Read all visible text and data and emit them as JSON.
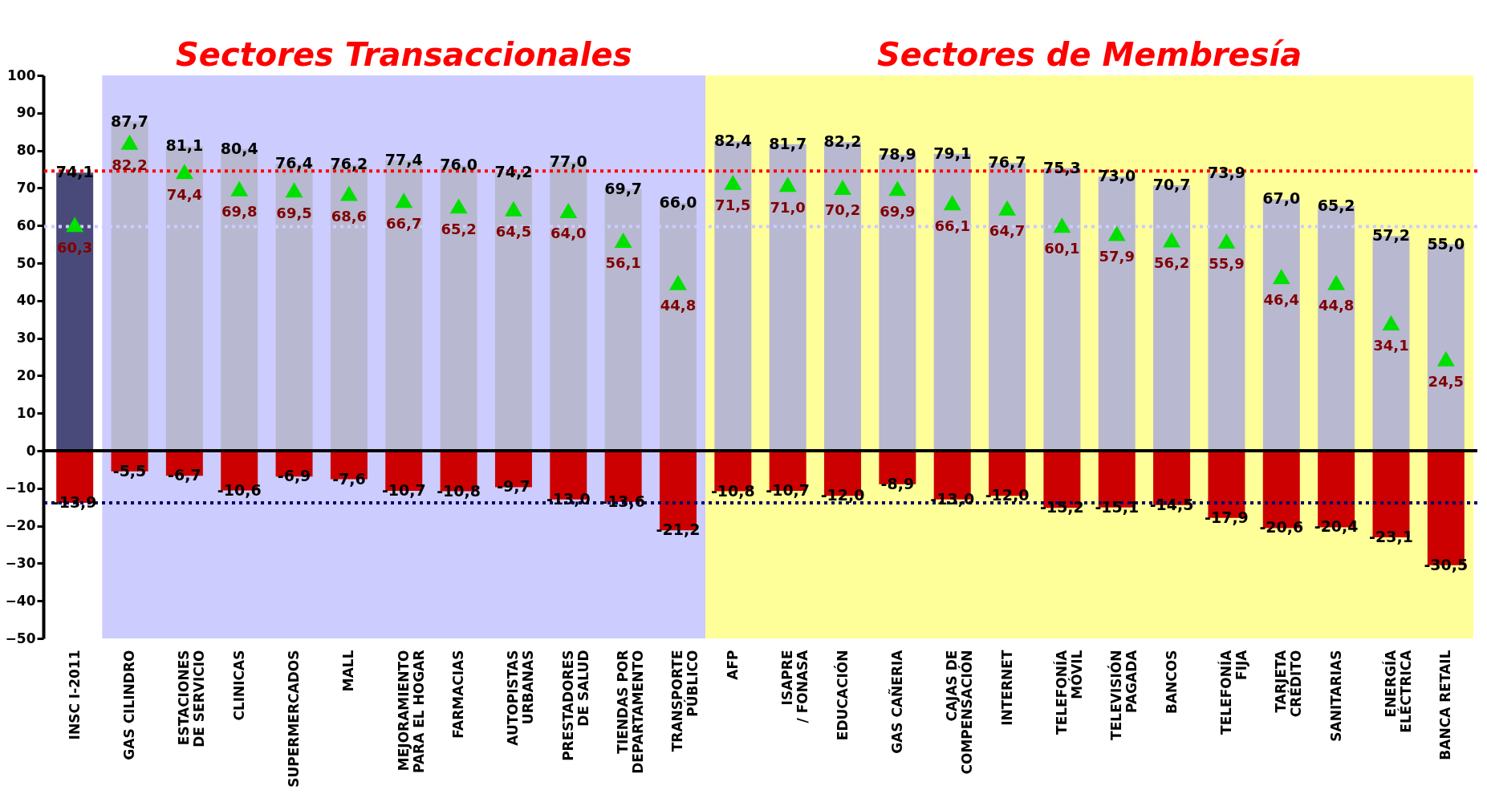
{
  "chart_data": {
    "type": "bar",
    "stacked": true,
    "categories": [
      "INSC I-2011",
      "GAS CILINDRO",
      "ESTACIONES DE SERVICIO",
      "CLINICAS",
      "SUPERMERCADOS",
      "MALL",
      "MEJORAMIENTO PARA EL HOGAR",
      "FARMACIAS",
      "AUTOPISTAS URBANAS",
      "PRESTADORES DE SALUD",
      "TIENDAS POR DEPARTAMENTO",
      "TRANSPORTE PÚBLICO",
      "AFP",
      "ISAPRE / FONASA",
      "EDUCACIÓN",
      "GAS CAÑERIA",
      "CAJAS DE COMPENSACIÓN",
      "INTERNET",
      "TELEFONÍA MÓVIL",
      "TELEVISIÓN PAGADA",
      "BANCOS",
      "TELEFONÍA FIJA",
      "TARJETA CRÉDITO",
      "SANITARIAS",
      "ENERGÍA ELÉCTRICA",
      "BANCA RETAIL"
    ],
    "series": [
      {
        "colors": [
          "#4a4a7a",
          "#b8b8d0",
          "#b8b8d0",
          "#b8b8d0",
          "#b8b8d0",
          "#b8b8d0",
          "#b8b8d0",
          "#b8b8d0",
          "#b8b8d0",
          "#b8b8d0",
          "#b8b8d0",
          "#b8b8d0",
          "#b8b8d0",
          "#b8b8d0",
          "#b8b8d0",
          "#b8b8d0",
          "#b8b8d0",
          "#b8b8d0",
          "#b8b8d0",
          "#b8b8d0",
          "#b8b8d0",
          "#b8b8d0",
          "#b8b8d0",
          "#b8b8d0",
          "#b8b8d0",
          "#b8b8d0"
        ],
        "values": [
          74.1,
          87.7,
          81.1,
          80.4,
          76.4,
          76.2,
          77.4,
          76.0,
          74.2,
          77.0,
          69.7,
          66.0,
          82.4,
          81.7,
          82.2,
          78.9,
          79.1,
          76.7,
          75.3,
          73.0,
          70.7,
          73.9,
          67.0,
          65.2,
          57.2,
          55.0
        ],
        "value_labels": [
          "74,1",
          "87,7",
          "81,1",
          "80,4",
          "76,4",
          "76,2",
          "77,4",
          "76,0",
          "74,2",
          "77,0",
          "69,7",
          "66,0",
          "82,4",
          "81,7",
          "82,2",
          "78,9",
          "79,1",
          "76,7",
          "75,3",
          "73,0",
          "70,7",
          "73,9",
          "67,0",
          "65,2",
          "57,2",
          "55,0"
        ]
      },
      {
        "color": "#cc0000",
        "values": [
          -13.9,
          -5.5,
          -6.7,
          -10.6,
          -6.9,
          -7.6,
          -10.7,
          -10.8,
          -9.7,
          -13.0,
          -13.6,
          -21.2,
          -10.8,
          -10.7,
          -12.0,
          -8.9,
          -13.0,
          -12.0,
          -15.2,
          -15.1,
          -14.5,
          -17.9,
          -20.6,
          -20.4,
          -23.1,
          -30.5
        ],
        "value_labels": [
          "-13,9",
          "-5,5",
          "-6,7",
          "-10,6",
          "-6,9",
          "-7,6",
          "-10,7",
          "-10,8",
          "-9,7",
          "-13,0",
          "-13,6",
          "-21,2",
          "-10,8",
          "-10,7",
          "-12,0",
          "-8,9",
          "-13,0",
          "-12,0",
          "-15,2",
          "-15,1",
          "-14,5",
          "-17,9",
          "-20,6",
          "-20,4",
          "-23,1",
          "-30,5"
        ]
      },
      {
        "type": "scatter",
        "marker": "triangle",
        "color": "#00e000",
        "values": [
          60.3,
          82.2,
          74.4,
          69.8,
          69.5,
          68.6,
          66.7,
          65.2,
          64.5,
          64.0,
          56.1,
          44.8,
          71.5,
          71.0,
          70.2,
          69.9,
          66.1,
          64.7,
          60.1,
          57.9,
          56.2,
          55.9,
          46.4,
          44.8,
          34.1,
          24.5
        ],
        "value_labels": [
          "60,3",
          "82,2",
          "74,4",
          "69,8",
          "69,5",
          "68,6",
          "66,7",
          "65,2",
          "64,5",
          "64,0",
          "56,1",
          "44,8",
          "71,5",
          "71,0",
          "70,2",
          "69,9",
          "66,1",
          "64,7",
          "60,1",
          "57,9",
          "56,2",
          "55,9",
          "46,4",
          "44,8",
          "34,1",
          "24,5"
        ]
      }
    ],
    "bands": [
      {
        "axis": "x",
        "from": "GAS CILINDRO",
        "to": "TRANSPORTE PÚBLICO",
        "label": "Sectores Transaccionales",
        "color": "#ccccff"
      },
      {
        "axis": "x",
        "from": "AFP",
        "to": "BANCA RETAIL",
        "label": "Sectores de Membresía",
        "color": "#ffff99"
      }
    ],
    "ref_lines": [
      {
        "axis": "y",
        "value": 74.5,
        "color": "#ff0000",
        "line_style": "dotted"
      },
      {
        "axis": "y",
        "value": 59.7,
        "color": "#ccccff",
        "line_style": "dotted"
      },
      {
        "axis": "y",
        "value": -13.9,
        "color": "#000066",
        "line_style": "dotted"
      }
    ],
    "ylim": [
      -50,
      100
    ],
    "yticks": [
      -50,
      -40,
      -30,
      -20,
      -10,
      0,
      10,
      20,
      30,
      40,
      50,
      60,
      70,
      80,
      90,
      100
    ],
    "grid": false
  }
}
